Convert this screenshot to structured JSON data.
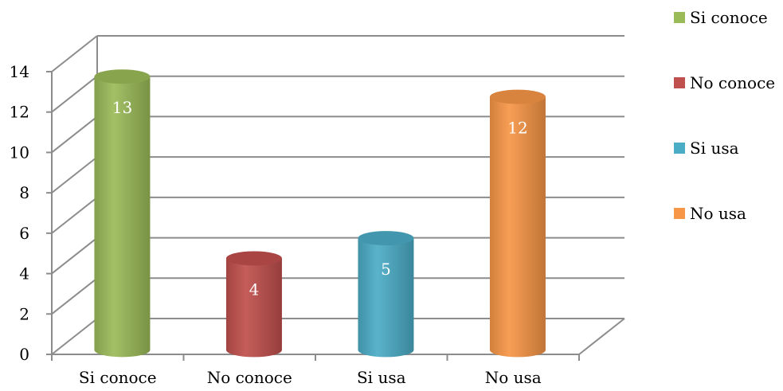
{
  "chart_data": {
    "type": "bar",
    "categories": [
      "Si conoce",
      "No conoce",
      "Si usa",
      "No usa"
    ],
    "values": [
      13,
      4,
      5,
      12
    ],
    "colors": [
      "#9bbb59",
      "#c0504d",
      "#4bacc6",
      "#f79646"
    ],
    "title": "",
    "xlabel": "",
    "ylabel": "",
    "ylim": [
      0,
      14
    ],
    "yticks": [
      0,
      2,
      4,
      6,
      8,
      10,
      12,
      14
    ],
    "grid": true,
    "legend_position": "right",
    "legend": [
      "Si conoce",
      "No conoce",
      "Si usa",
      "No usa"
    ],
    "bar_shape": "3d-cylinder"
  }
}
